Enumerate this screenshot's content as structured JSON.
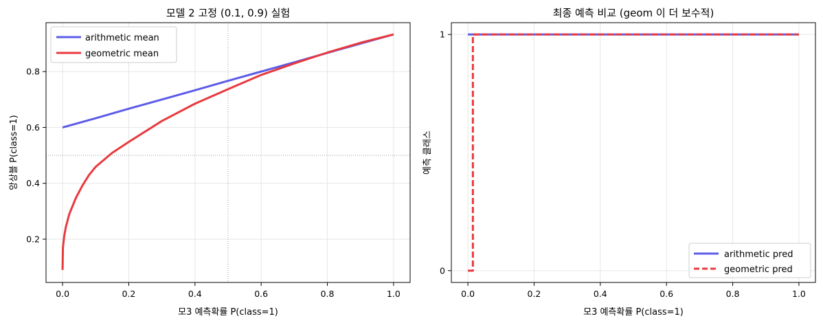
{
  "colors": {
    "arithmetic": "#5b5be8",
    "geometric": "#e8393d",
    "grid": "#e6e6e6",
    "refline": "#888888"
  },
  "chart_data": [
    {
      "type": "line",
      "title": "모델 2 고정 (0.1, 0.9) 실험",
      "xlabel": "모3 예측확률 P(class=1)",
      "ylabel": "앙상블 P(class=1)",
      "xlim": [
        -0.05,
        1.05
      ],
      "ylim": [
        0.045,
        0.975
      ],
      "xticks": [
        0.0,
        0.2,
        0.4,
        0.6,
        0.8,
        1.0
      ],
      "xtick_labels": [
        "0.0",
        "0.2",
        "0.4",
        "0.6",
        "0.8",
        "1.0"
      ],
      "yticks": [
        0.2,
        0.4,
        0.6,
        0.8
      ],
      "ytick_labels": [
        "0.2",
        "0.4",
        "0.6",
        "0.8"
      ],
      "grid": true,
      "reference_lines": {
        "x": 0.5,
        "y": 0.5
      },
      "legend_position": "upper-left",
      "series": [
        {
          "name": "arithmetic mean",
          "x": [
            0.0,
            0.1,
            0.2,
            0.3,
            0.4,
            0.5,
            0.6,
            0.7,
            0.8,
            0.9,
            1.0
          ],
          "y": [
            0.6,
            0.633,
            0.667,
            0.7,
            0.733,
            0.767,
            0.8,
            0.833,
            0.867,
            0.9,
            0.933
          ]
        },
        {
          "name": "geometric mean",
          "x": [
            0.0,
            0.001,
            0.005,
            0.01,
            0.02,
            0.04,
            0.06,
            0.08,
            0.1,
            0.15,
            0.2,
            0.3,
            0.4,
            0.5,
            0.6,
            0.7,
            0.8,
            0.9,
            1.0
          ],
          "y": [
            0.09,
            0.169,
            0.212,
            0.244,
            0.289,
            0.347,
            0.392,
            0.43,
            0.459,
            0.509,
            0.548,
            0.623,
            0.685,
            0.737,
            0.788,
            0.829,
            0.868,
            0.903,
            0.933
          ]
        }
      ]
    },
    {
      "type": "line",
      "title": "최종 예측 비교 (geom 이 더 보수적)",
      "xlabel": "모3 예측확률 P(class=1)",
      "ylabel": "예측 클래스",
      "xlim": [
        -0.05,
        1.05
      ],
      "ylim": [
        -0.05,
        1.05
      ],
      "xticks": [
        0.0,
        0.2,
        0.4,
        0.6,
        0.8,
        1.0
      ],
      "xtick_labels": [
        "0.0",
        "0.2",
        "0.4",
        "0.6",
        "0.8",
        "1.0"
      ],
      "yticks": [
        0,
        1
      ],
      "ytick_labels": [
        "0",
        "1"
      ],
      "grid": true,
      "legend_position": "lower-right",
      "series": [
        {
          "name": "arithmetic pred",
          "style": "solid",
          "x": [
            0.0,
            1.0
          ],
          "y": [
            1,
            1
          ]
        },
        {
          "name": "geometric pred",
          "style": "dashed",
          "x": [
            0.0,
            0.015,
            0.015,
            1.0
          ],
          "y": [
            0,
            0,
            1,
            1
          ]
        }
      ]
    }
  ]
}
